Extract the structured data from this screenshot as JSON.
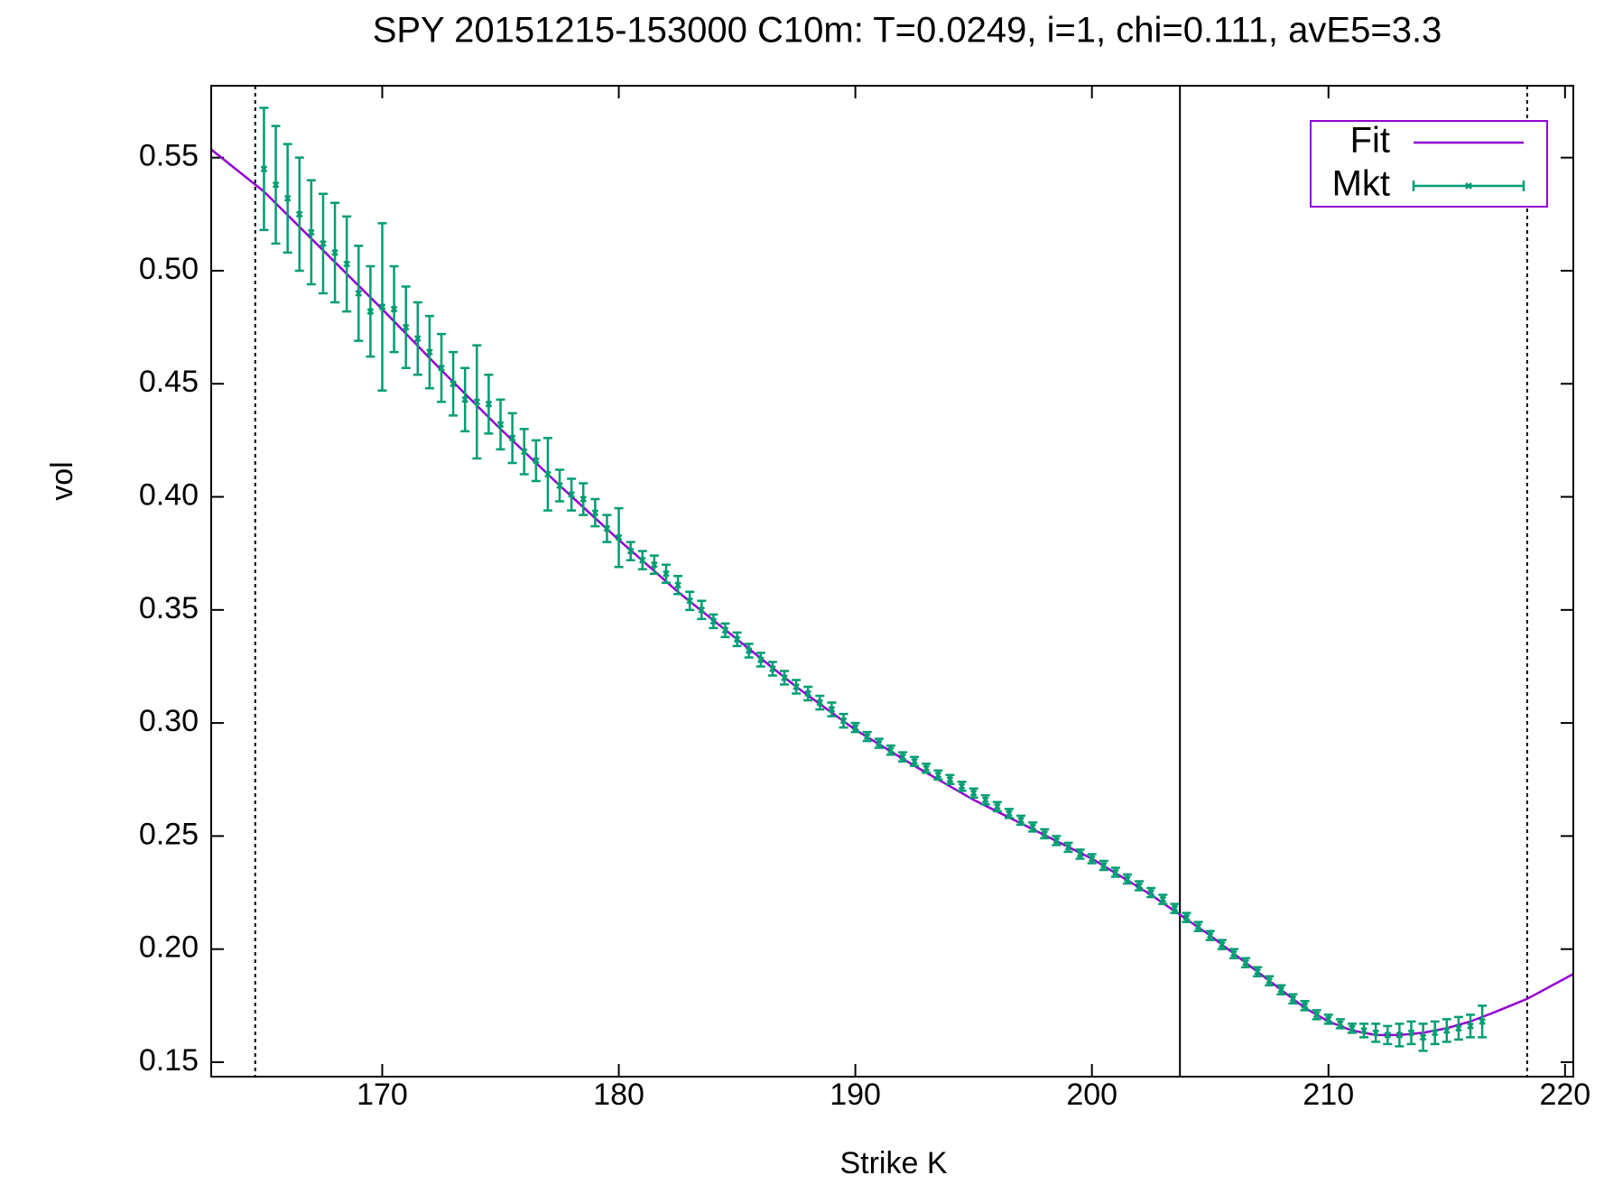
{
  "chart_data": {
    "type": "errorbar",
    "title": "SPY 20151215-153000  C10m:  T=0.0249, i=1, chi=0.111, avE5=3.3",
    "xlabel": "Strike K",
    "ylabel": "vol",
    "xlim": [
      162.77,
      220.35
    ],
    "ylim": [
      0.1436,
      0.5818
    ],
    "xticks": [
      170,
      180,
      190,
      200,
      210,
      220
    ],
    "yticks": [
      0.15,
      {
        "value": 0.2,
        "label": "0.20"
      },
      0.25,
      {
        "value": 0.3,
        "label": "0.30"
      },
      0.35,
      {
        "value": 0.4,
        "label": "0.40"
      },
      0.45,
      {
        "value": 0.5,
        "label": "0.50"
      },
      0.55
    ],
    "legend": "upper right",
    "vlines": [
      {
        "x": 164.63,
        "style": "dotted"
      },
      {
        "x": 203.72,
        "style": "solid"
      },
      {
        "x": 218.4,
        "style": "dotted"
      }
    ],
    "series": [
      {
        "name": "Fit",
        "color": "#9400d3",
        "x": [
          162.77,
          165,
          167.5,
          170,
          172.5,
          175,
          177.5,
          180,
          182.5,
          185,
          187.5,
          190,
          192.5,
          195,
          197.5,
          200,
          202.5,
          205,
          207,
          209,
          210,
          211,
          212,
          213,
          214,
          215,
          216,
          217,
          218.4,
          220.35
        ],
        "values": [
          0.5536,
          0.535,
          0.509,
          0.483,
          0.456,
          0.43,
          0.405,
          0.381,
          0.358,
          0.337,
          0.316,
          0.297,
          0.281,
          0.266,
          0.253,
          0.24,
          0.224,
          0.206,
          0.19,
          0.174,
          0.168,
          0.164,
          0.162,
          0.162,
          0.163,
          0.165,
          0.168,
          0.172,
          0.178,
          0.189
        ]
      },
      {
        "name": "Mkt",
        "color": "#009e73",
        "x": [
          165,
          165.5,
          166,
          166.5,
          167,
          167.5,
          168,
          168.5,
          169,
          169.5,
          170,
          170.5,
          171,
          171.5,
          172,
          172.5,
          173,
          173.5,
          174,
          174.5,
          175,
          175.5,
          176,
          176.5,
          177,
          177.5,
          178,
          178.5,
          179,
          179.5,
          180,
          180.5,
          181,
          181.5,
          182,
          182.5,
          183,
          183.5,
          184,
          184.5,
          185,
          185.5,
          186,
          186.5,
          187,
          187.5,
          188,
          188.5,
          189,
          189.5,
          190,
          190.5,
          191,
          191.5,
          192,
          192.5,
          193,
          193.5,
          194,
          194.5,
          195,
          195.5,
          196,
          196.5,
          197,
          197.5,
          198,
          198.5,
          199,
          199.5,
          200,
          200.5,
          201,
          201.5,
          202,
          202.5,
          203,
          203.5,
          204,
          204.5,
          205,
          205.5,
          206,
          206.5,
          207,
          207.5,
          208,
          208.5,
          209,
          209.5,
          210,
          210.5,
          211,
          211.5,
          212,
          212.5,
          213,
          213.5,
          214,
          214.5,
          215,
          215.5,
          216,
          216.5
        ],
        "values": [
          0.545,
          0.538,
          0.532,
          0.525,
          0.517,
          0.512,
          0.508,
          0.503,
          0.49,
          0.482,
          0.484,
          0.483,
          0.475,
          0.47,
          0.464,
          0.457,
          0.45,
          0.443,
          0.442,
          0.441,
          0.432,
          0.426,
          0.42,
          0.416,
          0.41,
          0.405,
          0.401,
          0.399,
          0.393,
          0.386,
          0.382,
          0.376,
          0.372,
          0.37,
          0.366,
          0.361,
          0.354,
          0.35,
          0.345,
          0.341,
          0.337,
          0.332,
          0.328,
          0.324,
          0.32,
          0.316,
          0.313,
          0.309,
          0.306,
          0.301,
          0.298,
          0.294,
          0.291,
          0.288,
          0.285,
          0.283,
          0.28,
          0.277,
          0.275,
          0.272,
          0.269,
          0.266,
          0.263,
          0.26,
          0.257,
          0.254,
          0.251,
          0.248,
          0.245,
          0.242,
          0.24,
          0.237,
          0.234,
          0.231,
          0.228,
          0.225,
          0.222,
          0.218,
          0.214,
          0.21,
          0.206,
          0.202,
          0.198,
          0.194,
          0.19,
          0.186,
          0.182,
          0.178,
          0.175,
          0.171,
          0.169,
          0.167,
          0.165,
          0.164,
          0.163,
          0.162,
          0.162,
          0.163,
          0.161,
          0.163,
          0.164,
          0.165,
          0.166,
          0.168
        ],
        "errors": [
          0.027,
          0.026,
          0.024,
          0.025,
          0.023,
          0.022,
          0.022,
          0.021,
          0.021,
          0.02,
          0.037,
          0.019,
          0.018,
          0.016,
          0.016,
          0.015,
          0.014,
          0.014,
          0.025,
          0.013,
          0.011,
          0.011,
          0.01,
          0.009,
          0.016,
          0.007,
          0.007,
          0.007,
          0.006,
          0.006,
          0.013,
          0.004,
          0.004,
          0.004,
          0.004,
          0.004,
          0.004,
          0.004,
          0.003,
          0.003,
          0.003,
          0.003,
          0.003,
          0.003,
          0.003,
          0.003,
          0.003,
          0.003,
          0.003,
          0.003,
          0.002,
          0.002,
          0.002,
          0.002,
          0.002,
          0.002,
          0.002,
          0.002,
          0.002,
          0.002,
          0.002,
          0.002,
          0.002,
          0.002,
          0.002,
          0.002,
          0.002,
          0.002,
          0.002,
          0.002,
          0.002,
          0.002,
          0.002,
          0.002,
          0.002,
          0.002,
          0.002,
          0.002,
          0.002,
          0.002,
          0.002,
          0.002,
          0.002,
          0.002,
          0.002,
          0.002,
          0.002,
          0.002,
          0.002,
          0.002,
          0.002,
          0.002,
          0.002,
          0.003,
          0.004,
          0.004,
          0.005,
          0.005,
          0.006,
          0.005,
          0.005,
          0.005,
          0.005,
          0.007
        ]
      }
    ]
  }
}
